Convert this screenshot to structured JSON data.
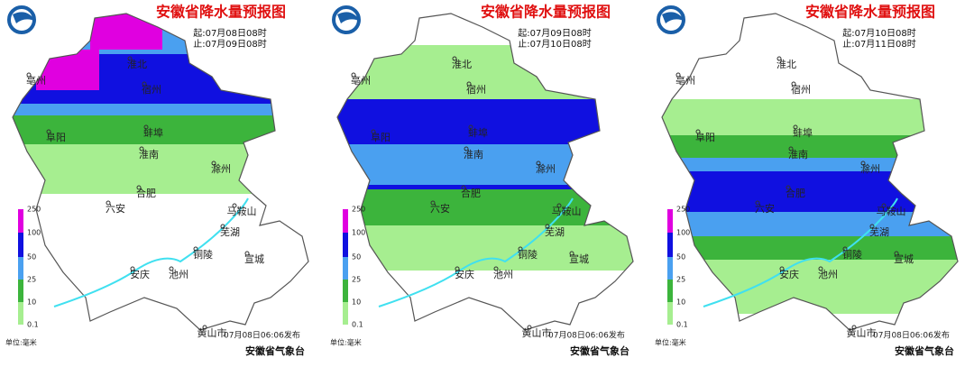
{
  "panels": [
    {
      "title": "安徽省降水量预报图",
      "start": "起:07月08日08时",
      "end": "止:07月09日08时"
    },
    {
      "title": "安徽省降水量预报图",
      "start": "起:07月09日08时",
      "end": "止:07月10日08时"
    },
    {
      "title": "安徽省降水量预报图",
      "start": "起:07月10日08时",
      "end": "止:07月11日08时"
    }
  ],
  "cities": [
    "淮北",
    "宿州",
    "亳州",
    "阜阳",
    "蚌埠",
    "淮南",
    "滁州",
    "合肥",
    "六安",
    "马鞍山",
    "芜湖",
    "铜陵",
    "宣城",
    "安庆",
    "池州",
    "黄山市"
  ],
  "legend": {
    "ticks": [
      "250",
      "100",
      "50",
      "25",
      "10",
      "0.1"
    ],
    "unit": "单位:毫米"
  },
  "issued": "07月08日06:06发布",
  "agency": "安徽省气象台"
}
